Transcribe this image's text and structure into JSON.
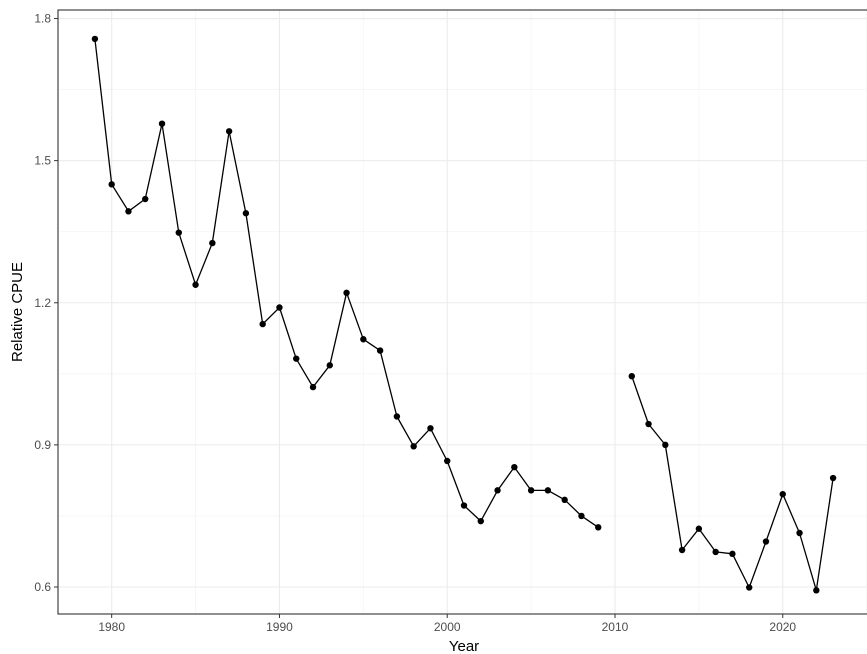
{
  "chart_data": {
    "type": "line",
    "title": "",
    "xlabel": "Year",
    "ylabel": "Relative CPUE",
    "xlim": [
      1976.8,
      2025.2
    ],
    "ylim": [
      0.543,
      1.818
    ],
    "x_ticks": [
      1980,
      1990,
      2000,
      2010,
      2020
    ],
    "x_tick_labels": [
      "1980",
      "1990",
      "2000",
      "2010",
      "2020"
    ],
    "y_ticks": [
      0.6,
      0.9,
      1.2,
      1.5,
      1.8
    ],
    "y_tick_labels": [
      "0.6",
      "0.9",
      "1.2",
      "1.5",
      "1.8"
    ],
    "grid": true,
    "legend": "none",
    "colors": {
      "line": "#000000",
      "points": "#000000",
      "grid_major": "#ebebeb",
      "grid_minor": "#f5f5f5",
      "panel_border": "#333333",
      "tick_label": "#4d4d4d"
    },
    "segments": [
      {
        "x": [
          1979,
          1980,
          1981,
          1982,
          1983,
          1984,
          1985,
          1986,
          1987,
          1988,
          1989,
          1990,
          1991,
          1992,
          1993,
          1994,
          1995,
          1996,
          1997,
          1998,
          1999,
          2000,
          2001,
          2002,
          2003,
          2004,
          2005,
          2006,
          2007,
          2008,
          2009
        ],
        "y": [
          1.757,
          1.45,
          1.393,
          1.419,
          1.578,
          1.348,
          1.238,
          1.326,
          1.562,
          1.389,
          1.155,
          1.19,
          1.082,
          1.022,
          1.068,
          1.221,
          1.123,
          1.099,
          0.96,
          0.897,
          0.935,
          0.866,
          0.772,
          0.739,
          0.804,
          0.853,
          0.804,
          0.804,
          0.784,
          0.75,
          0.726
        ]
      },
      {
        "x": [
          2011,
          2012,
          2013,
          2014,
          2015,
          2016,
          2017,
          2018,
          2019,
          2020,
          2021,
          2022,
          2023
        ],
        "y": [
          1.045,
          0.944,
          0.9,
          0.678,
          0.723,
          0.674,
          0.67,
          0.599,
          0.696,
          0.796,
          0.714,
          0.593,
          0.83
        ]
      }
    ]
  }
}
